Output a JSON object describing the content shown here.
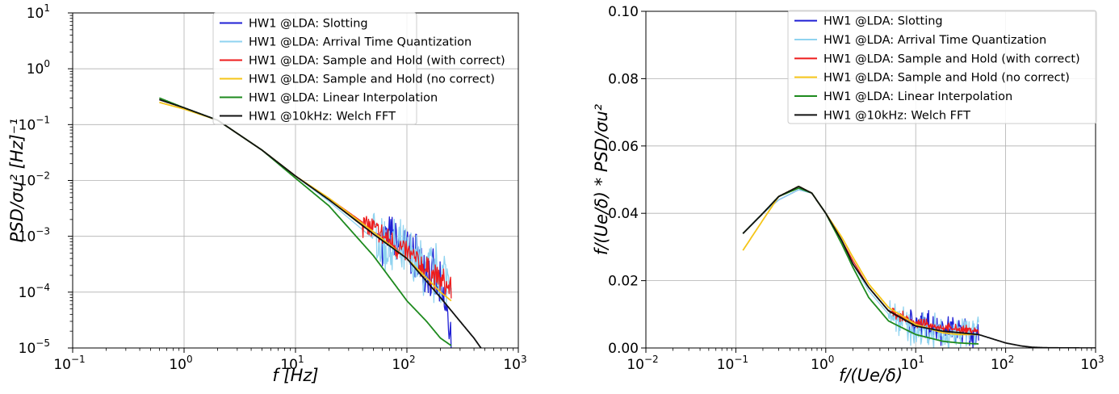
{
  "chart_data": [
    {
      "type": "line",
      "x_scale": "log",
      "y_scale": "log",
      "xlim": [
        0.1,
        1000
      ],
      "ylim": [
        1e-05,
        10
      ],
      "x_ticks": [
        0.1,
        1,
        10,
        100,
        1000
      ],
      "y_ticks": [
        1e-05,
        0.0001,
        0.001,
        0.01,
        0.1,
        1,
        10
      ],
      "x_tick_labels": [
        {
          "base": "10",
          "exp": "−1"
        },
        {
          "base": "10",
          "exp": "0"
        },
        {
          "base": "10",
          "exp": "1"
        },
        {
          "base": "10",
          "exp": "2"
        },
        {
          "base": "10",
          "exp": "3"
        }
      ],
      "y_tick_labels": [
        {
          "base": "10",
          "exp": "−5"
        },
        {
          "base": "10",
          "exp": "−4"
        },
        {
          "base": "10",
          "exp": "−3"
        },
        {
          "base": "10",
          "exp": "−2"
        },
        {
          "base": "10",
          "exp": "−1"
        },
        {
          "base": "10",
          "exp": "0"
        },
        {
          "base": "10",
          "exp": "1"
        }
      ],
      "xlabel": "f   [Hz]",
      "ylabel": "PSD/σu²   [Hz]⁻¹",
      "grid": true,
      "legend_position": "upper-right",
      "series": [
        {
          "name": "HW1 @LDA: Slotting",
          "color": "#1f1fd4",
          "noise": 0.55,
          "noise_start": 60,
          "x": [
            0.6,
            1,
            2,
            5,
            10,
            20,
            50,
            100,
            150,
            200,
            250
          ],
          "y": [
            0.28,
            0.2,
            0.12,
            0.035,
            0.012,
            0.0045,
            0.0012,
            0.0006,
            0.0003,
            0.0001,
            2e-05
          ]
        },
        {
          "name": "HW1 @LDA: Arrival Time Quantization",
          "color": "#8fd3f0",
          "noise": 0.7,
          "noise_start": 50,
          "x": [
            0.6,
            1,
            2,
            5,
            10,
            20,
            50,
            100,
            150,
            200,
            250
          ],
          "y": [
            0.28,
            0.2,
            0.12,
            0.035,
            0.012,
            0.0042,
            0.0009,
            0.0004,
            0.00025,
            0.00018,
            0.0002
          ]
        },
        {
          "name": "HW1 @LDA: Sample and Hold (with correct)",
          "color": "#ee1c1c",
          "noise": 0.3,
          "noise_start": 40,
          "x": [
            0.6,
            1,
            2,
            5,
            10,
            20,
            50,
            100,
            150,
            200,
            250
          ],
          "y": [
            0.28,
            0.2,
            0.12,
            0.035,
            0.012,
            0.0048,
            0.0013,
            0.0005,
            0.00025,
            0.00016,
            0.00011
          ]
        },
        {
          "name": "HW1 @LDA: Sample and Hold (no correct)",
          "color": "#f5c518",
          "noise": 0,
          "noise_start": 1000,
          "x": [
            0.6,
            1,
            2,
            5,
            10,
            20,
            50,
            100,
            150,
            200,
            250
          ],
          "y": [
            0.25,
            0.19,
            0.12,
            0.035,
            0.012,
            0.0048,
            0.0012,
            0.0004,
            0.00018,
            0.0001,
            7e-05
          ]
        },
        {
          "name": "HW1 @LDA: Linear Interpolation",
          "color": "#1e8a1e",
          "noise": 0,
          "noise_start": 1000,
          "x": [
            0.6,
            1,
            2,
            5,
            10,
            20,
            50,
            100,
            150,
            200,
            250
          ],
          "y": [
            0.3,
            0.2,
            0.12,
            0.035,
            0.011,
            0.0035,
            0.00045,
            7e-05,
            3e-05,
            1.5e-05,
            1.1e-05
          ]
        },
        {
          "name": "HW1 @10kHz: Welch FFT",
          "color": "#111111",
          "noise": 0,
          "noise_start": 1000,
          "x": [
            0.6,
            1,
            2,
            5,
            10,
            20,
            50,
            100,
            200,
            300,
            400,
            500
          ],
          "y": [
            0.28,
            0.2,
            0.12,
            0.035,
            0.012,
            0.0045,
            0.0011,
            0.0004,
            8e-05,
            3e-05,
            1.5e-05,
            8e-06
          ]
        }
      ]
    },
    {
      "type": "line",
      "x_scale": "log",
      "y_scale": "linear",
      "xlim": [
        0.01,
        1000
      ],
      "ylim": [
        0,
        0.1
      ],
      "x_ticks": [
        0.01,
        0.1,
        1,
        10,
        100,
        1000
      ],
      "y_ticks": [
        0,
        0.02,
        0.04,
        0.06,
        0.08,
        0.1
      ],
      "x_tick_labels": [
        {
          "base": "10",
          "exp": "−2"
        },
        {
          "base": "10",
          "exp": "−1"
        },
        {
          "base": "10",
          "exp": "0"
        },
        {
          "base": "10",
          "exp": "1"
        },
        {
          "base": "10",
          "exp": "2"
        },
        {
          "base": "10",
          "exp": "3"
        }
      ],
      "y_tick_labels": [
        "0.00",
        "0.02",
        "0.04",
        "0.06",
        "0.08",
        "0.10"
      ],
      "xlabel": "f/(Ue/δ)",
      "ylabel": "f/(Ue/δ) * PSD/σu²",
      "grid": true,
      "legend_position": "upper-right",
      "series": [
        {
          "name": "HW1 @LDA: Slotting",
          "color": "#1f1fd4",
          "noise": 0.006,
          "noise_start": 8,
          "x": [
            0.12,
            0.2,
            0.3,
            0.5,
            0.7,
            1,
            1.5,
            2,
            3,
            5,
            10,
            20,
            30,
            50
          ],
          "y": [
            0.034,
            0.04,
            0.044,
            0.047,
            0.046,
            0.04,
            0.032,
            0.025,
            0.018,
            0.011,
            0.007,
            0.006,
            0.005,
            0.004
          ]
        },
        {
          "name": "HW1 @LDA: Arrival Time Quantization",
          "color": "#8fd3f0",
          "noise": 0.007,
          "noise_start": 5,
          "x": [
            0.12,
            0.2,
            0.3,
            0.5,
            0.7,
            1,
            1.5,
            2,
            3,
            5,
            10,
            20,
            30,
            50
          ],
          "y": [
            0.034,
            0.04,
            0.044,
            0.047,
            0.046,
            0.04,
            0.032,
            0.025,
            0.017,
            0.01,
            0.005,
            0.004,
            0.004,
            0.006
          ]
        },
        {
          "name": "HW1 @LDA: Sample and Hold (with correct)",
          "color": "#ee1c1c",
          "noise": 0.0018,
          "noise_start": 5,
          "x": [
            0.12,
            0.2,
            0.3,
            0.5,
            0.7,
            1,
            1.5,
            2,
            3,
            5,
            10,
            20,
            30,
            50
          ],
          "y": [
            0.034,
            0.04,
            0.045,
            0.048,
            0.046,
            0.04,
            0.032,
            0.026,
            0.018,
            0.011,
            0.0075,
            0.006,
            0.0055,
            0.005
          ]
        },
        {
          "name": "HW1 @LDA: Sample and Hold (no correct)",
          "color": "#f5c518",
          "noise": 0,
          "noise_start": 1000,
          "x": [
            0.12,
            0.2,
            0.3,
            0.5,
            0.7,
            1,
            1.5,
            2,
            3,
            5,
            10,
            20,
            30,
            50
          ],
          "y": [
            0.029,
            0.038,
            0.045,
            0.048,
            0.046,
            0.04,
            0.033,
            0.027,
            0.019,
            0.012,
            0.007,
            0.0045,
            0.004,
            0.004
          ]
        },
        {
          "name": "HW1 @LDA: Linear Interpolation",
          "color": "#1e8a1e",
          "noise": 0,
          "noise_start": 1000,
          "x": [
            0.12,
            0.2,
            0.3,
            0.5,
            0.7,
            1,
            1.5,
            2,
            3,
            5,
            10,
            20,
            30,
            50
          ],
          "y": [
            0.034,
            0.04,
            0.045,
            0.0475,
            0.046,
            0.04,
            0.031,
            0.024,
            0.015,
            0.008,
            0.004,
            0.002,
            0.0015,
            0.0012
          ]
        },
        {
          "name": "HW1 @10kHz: Welch FFT",
          "color": "#111111",
          "noise": 0,
          "noise_start": 1000,
          "x": [
            0.12,
            0.2,
            0.3,
            0.5,
            0.7,
            1,
            1.5,
            2,
            3,
            5,
            10,
            20,
            50,
            100,
            150,
            200,
            300,
            500,
            1000
          ],
          "y": [
            0.034,
            0.04,
            0.045,
            0.048,
            0.046,
            0.04,
            0.032,
            0.025,
            0.018,
            0.011,
            0.0065,
            0.005,
            0.004,
            0.0015,
            0.0006,
            0.0002,
            5e-05,
            2e-05,
            0
          ]
        }
      ]
    }
  ]
}
